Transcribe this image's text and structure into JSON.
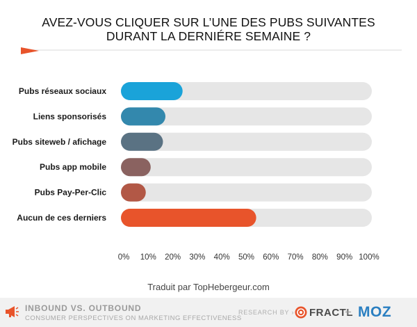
{
  "title_lines": [
    "AVEZ-VOUS CLIQUER SUR L’UNE DES PUBS SUIVANTES",
    "DURANT LA DERNIÉRE SEMAINE ?"
  ],
  "chart_data": {
    "type": "bar",
    "orientation": "horizontal",
    "title": "AVEZ-VOUS CLIQUER SUR L’UNE DES PUBS SUIVANTES DURANT LA DERNIÉRE SEMAINE ?",
    "categories": [
      "Pubs réseaux sociaux",
      "Liens sponsorisés",
      "Pubs siteweb / afichage",
      "Pubs app mobile",
      "Pubs Pay-Per-Clic",
      "Aucun de ces derniers"
    ],
    "values": [
      24,
      17,
      16,
      11,
      9,
      54
    ],
    "value_unit": "%",
    "xlim": [
      0,
      100
    ],
    "xticks": [
      "0%",
      "10%",
      "20%",
      "30%",
      "40%",
      "50%",
      "60%",
      "70%",
      "80%",
      "90%",
      "100%"
    ],
    "bar_colors": [
      "#1aa3d9",
      "#3388ad",
      "#5a7283",
      "#8a6260",
      "#b25846",
      "#e8542b"
    ],
    "track_color": "#e6e6e6",
    "legend": "none",
    "grid": false
  },
  "credit": "Traduit par TopHebergeur.com",
  "footer": {
    "title": "INBOUND VS. OUTBOUND",
    "subtitle": "CONSUMER PERSPECTIVES ON MARKETING EFFECTIVENESS",
    "research_by": "RESEARCH BY",
    "arrow": "›",
    "fractl": "FRACTL",
    "plus": "+",
    "moz": "MOZ",
    "icons": [
      "megaphone-icon",
      "fractl-logo-icon"
    ]
  }
}
